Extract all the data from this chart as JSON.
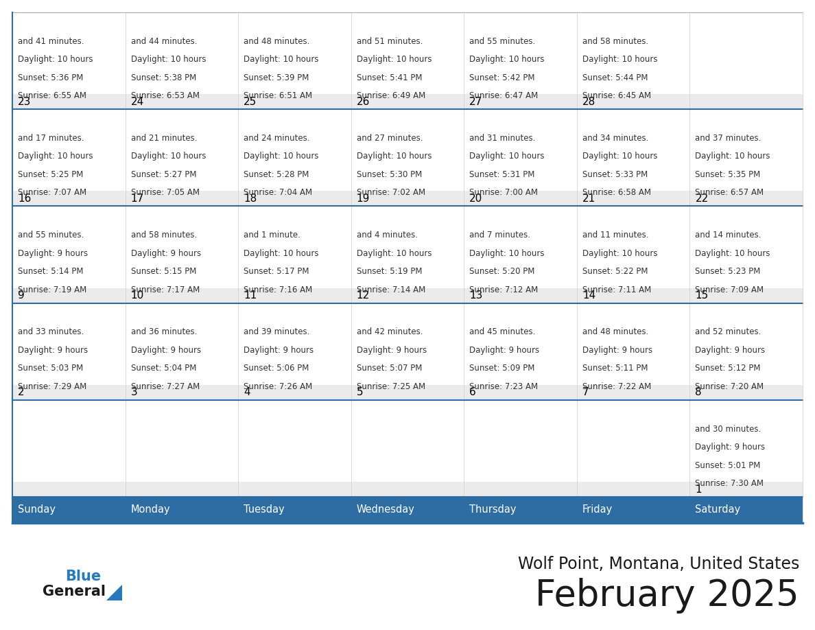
{
  "title": "February 2025",
  "subtitle": "Wolf Point, Montana, United States",
  "header_bg": "#2E6DA4",
  "header_text_color": "#FFFFFF",
  "border_color": "#2E6DA4",
  "cell_top_bg": "#EBEBEB",
  "cell_bottom_bg": "#FFFFFF",
  "day_num_color": "#000000",
  "text_color": "#333333",
  "logo_general_color": "#1a1a1a",
  "logo_blue_color": "#2779BD",
  "day_names": [
    "Sunday",
    "Monday",
    "Tuesday",
    "Wednesday",
    "Thursday",
    "Friday",
    "Saturday"
  ],
  "cells": [
    [
      null,
      null,
      null,
      null,
      null,
      null,
      {
        "day": 1,
        "sunrise": "7:30 AM",
        "sunset": "5:01 PM",
        "daylight": "9 hours\nand 30 minutes."
      }
    ],
    [
      {
        "day": 2,
        "sunrise": "7:29 AM",
        "sunset": "5:03 PM",
        "daylight": "9 hours\nand 33 minutes."
      },
      {
        "day": 3,
        "sunrise": "7:27 AM",
        "sunset": "5:04 PM",
        "daylight": "9 hours\nand 36 minutes."
      },
      {
        "day": 4,
        "sunrise": "7:26 AM",
        "sunset": "5:06 PM",
        "daylight": "9 hours\nand 39 minutes."
      },
      {
        "day": 5,
        "sunrise": "7:25 AM",
        "sunset": "5:07 PM",
        "daylight": "9 hours\nand 42 minutes."
      },
      {
        "day": 6,
        "sunrise": "7:23 AM",
        "sunset": "5:09 PM",
        "daylight": "9 hours\nand 45 minutes."
      },
      {
        "day": 7,
        "sunrise": "7:22 AM",
        "sunset": "5:11 PM",
        "daylight": "9 hours\nand 48 minutes."
      },
      {
        "day": 8,
        "sunrise": "7:20 AM",
        "sunset": "5:12 PM",
        "daylight": "9 hours\nand 52 minutes."
      }
    ],
    [
      {
        "day": 9,
        "sunrise": "7:19 AM",
        "sunset": "5:14 PM",
        "daylight": "9 hours\nand 55 minutes."
      },
      {
        "day": 10,
        "sunrise": "7:17 AM",
        "sunset": "5:15 PM",
        "daylight": "9 hours\nand 58 minutes."
      },
      {
        "day": 11,
        "sunrise": "7:16 AM",
        "sunset": "5:17 PM",
        "daylight": "10 hours\nand 1 minute."
      },
      {
        "day": 12,
        "sunrise": "7:14 AM",
        "sunset": "5:19 PM",
        "daylight": "10 hours\nand 4 minutes."
      },
      {
        "day": 13,
        "sunrise": "7:12 AM",
        "sunset": "5:20 PM",
        "daylight": "10 hours\nand 7 minutes."
      },
      {
        "day": 14,
        "sunrise": "7:11 AM",
        "sunset": "5:22 PM",
        "daylight": "10 hours\nand 11 minutes."
      },
      {
        "day": 15,
        "sunrise": "7:09 AM",
        "sunset": "5:23 PM",
        "daylight": "10 hours\nand 14 minutes."
      }
    ],
    [
      {
        "day": 16,
        "sunrise": "7:07 AM",
        "sunset": "5:25 PM",
        "daylight": "10 hours\nand 17 minutes."
      },
      {
        "day": 17,
        "sunrise": "7:05 AM",
        "sunset": "5:27 PM",
        "daylight": "10 hours\nand 21 minutes."
      },
      {
        "day": 18,
        "sunrise": "7:04 AM",
        "sunset": "5:28 PM",
        "daylight": "10 hours\nand 24 minutes."
      },
      {
        "day": 19,
        "sunrise": "7:02 AM",
        "sunset": "5:30 PM",
        "daylight": "10 hours\nand 27 minutes."
      },
      {
        "day": 20,
        "sunrise": "7:00 AM",
        "sunset": "5:31 PM",
        "daylight": "10 hours\nand 31 minutes."
      },
      {
        "day": 21,
        "sunrise": "6:58 AM",
        "sunset": "5:33 PM",
        "daylight": "10 hours\nand 34 minutes."
      },
      {
        "day": 22,
        "sunrise": "6:57 AM",
        "sunset": "5:35 PM",
        "daylight": "10 hours\nand 37 minutes."
      }
    ],
    [
      {
        "day": 23,
        "sunrise": "6:55 AM",
        "sunset": "5:36 PM",
        "daylight": "10 hours\nand 41 minutes."
      },
      {
        "day": 24,
        "sunrise": "6:53 AM",
        "sunset": "5:38 PM",
        "daylight": "10 hours\nand 44 minutes."
      },
      {
        "day": 25,
        "sunrise": "6:51 AM",
        "sunset": "5:39 PM",
        "daylight": "10 hours\nand 48 minutes."
      },
      {
        "day": 26,
        "sunrise": "6:49 AM",
        "sunset": "5:41 PM",
        "daylight": "10 hours\nand 51 minutes."
      },
      {
        "day": 27,
        "sunrise": "6:47 AM",
        "sunset": "5:42 PM",
        "daylight": "10 hours\nand 55 minutes."
      },
      {
        "day": 28,
        "sunrise": "6:45 AM",
        "sunset": "5:44 PM",
        "daylight": "10 hours\nand 58 minutes."
      },
      null
    ]
  ]
}
